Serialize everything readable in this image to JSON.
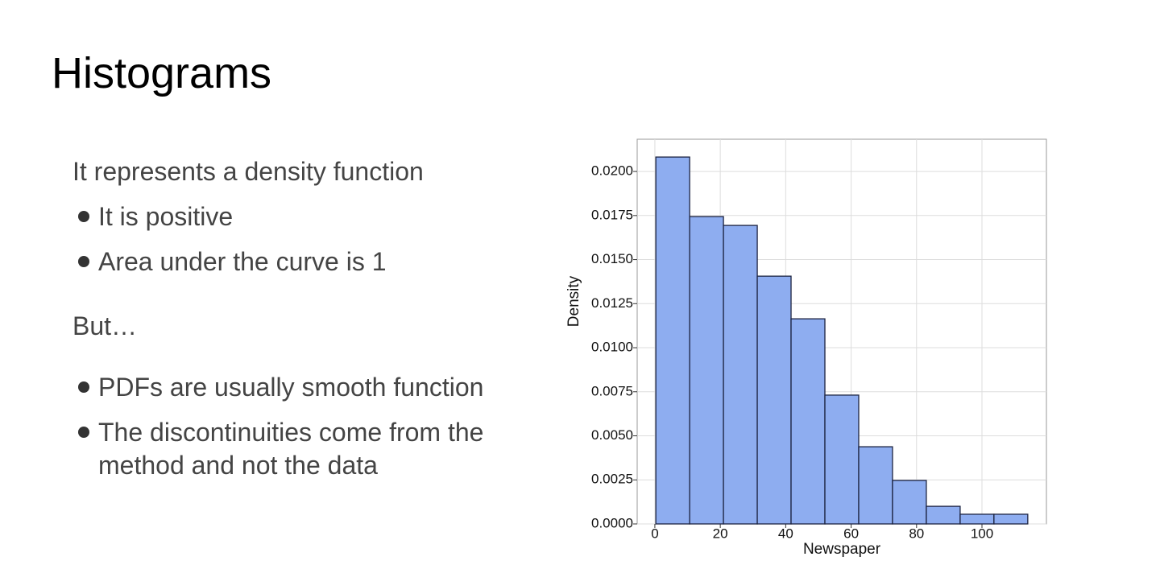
{
  "title": "Histograms",
  "body": {
    "intro": "It represents a density function",
    "bullets1": [
      "It is positive",
      "Area under the curve is 1"
    ],
    "but": "But…",
    "bullets2": [
      "PDFs are usually smooth function",
      "The discontinuities come from the method and not the data"
    ]
  },
  "chart_data": {
    "type": "histogram",
    "xlabel": "Newspaper",
    "ylabel": "Density",
    "bins": [
      0.3,
      10.64,
      20.97,
      31.31,
      41.64,
      51.98,
      62.32,
      72.65,
      82.99,
      93.33,
      103.66,
      114.0
    ],
    "values": [
      0.02082,
      0.01744,
      0.01694,
      0.01406,
      0.01164,
      0.00731,
      0.00438,
      0.00247,
      0.001,
      0.00055,
      0.00055
    ],
    "color": "#8eadf0",
    "edgecolor": "#1c2340",
    "xlim": [
      -5.4,
      119.7
    ],
    "ylim": [
      0,
      0.02183
    ],
    "xticks": [
      0,
      20,
      40,
      60,
      80,
      100
    ],
    "yticks": [
      {
        "value": 0,
        "label": "0.0000"
      },
      {
        "value": 0.0025,
        "label": "0.0025"
      },
      {
        "value": 0.005,
        "label": "0.0050"
      },
      {
        "value": 0.0075,
        "label": "0.0075"
      },
      {
        "value": 0.01,
        "label": "0.0100"
      },
      {
        "value": 0.0125,
        "label": "0.0125"
      },
      {
        "value": 0.015,
        "label": "0.0150"
      },
      {
        "value": 0.0175,
        "label": "0.0175"
      },
      {
        "value": 0.02,
        "label": "0.0200"
      }
    ],
    "grid": true
  }
}
